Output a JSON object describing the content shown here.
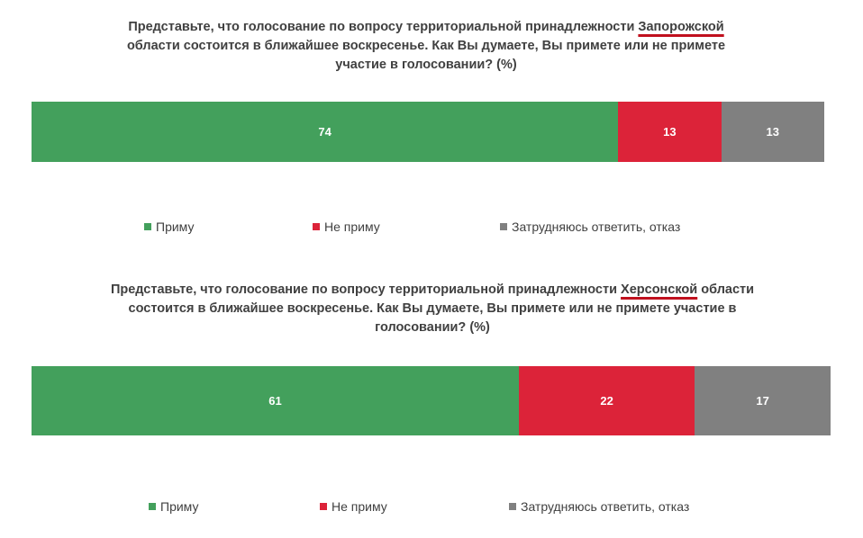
{
  "chart_data": [
    {
      "type": "bar",
      "orientation": "horizontal",
      "stacked": true,
      "title_prefix": "Представьте, что голосование по вопросу территориальной принадлежности ",
      "title_region": "Запорожской",
      "title_suffix": " области состоится в ближайшее воскресенье. Как Вы думаете, Вы примете или не примете участие в голосовании? (%)",
      "xlim": [
        0,
        100
      ],
      "legend": "bottom",
      "series": [
        {
          "name": "Приму",
          "color": "#43a05c",
          "values": [
            74
          ]
        },
        {
          "name": "Не приму",
          "color": "#dc2339",
          "values": [
            13
          ]
        },
        {
          "name": "Затрудняюсь ответить, отказ",
          "color": "#808080",
          "values": [
            13
          ]
        }
      ]
    },
    {
      "type": "bar",
      "orientation": "horizontal",
      "stacked": true,
      "title_prefix": "Представьте, что голосование по вопросу территориальной принадлежности ",
      "title_region": "Херсонской",
      "title_suffix": " области состоится в ближайшее воскресенье. Как Вы думаете, Вы примете или не примете участие в голосовании? (%)",
      "xlim": [
        0,
        100
      ],
      "legend": "bottom",
      "series": [
        {
          "name": "Приму",
          "color": "#43a05c",
          "values": [
            61
          ]
        },
        {
          "name": "Не приму",
          "color": "#dc2339",
          "values": [
            22
          ]
        },
        {
          "name": "Затрудняюсь ответить, отказ",
          "color": "#808080",
          "values": [
            17
          ]
        }
      ]
    }
  ]
}
